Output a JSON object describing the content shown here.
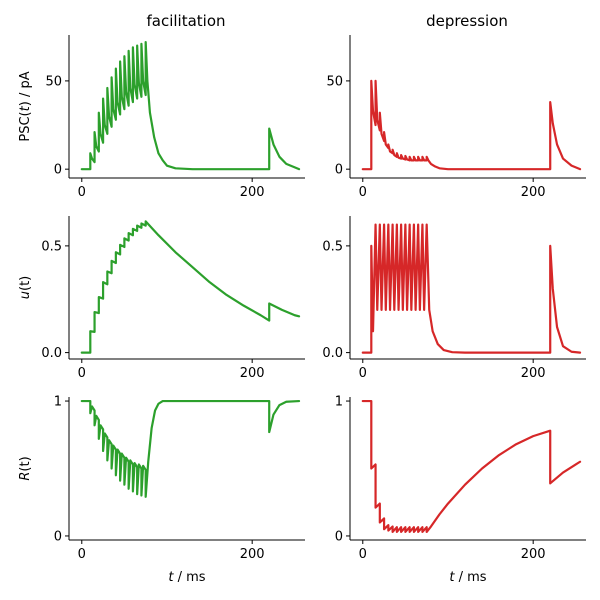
{
  "chart_data": {
    "type": "line",
    "columns": [
      "facilitation",
      "depression"
    ],
    "x_label_var": "t",
    "x_label_unit": " / ms",
    "x_ticks": [
      0,
      200
    ],
    "xlim": [
      -15,
      262
    ],
    "colors": {
      "facilitation": "#2ca02c",
      "depression": "#d62728"
    },
    "rows": [
      {
        "ylabel_pre": "PSC(",
        "ylabel_var": "t",
        "ylabel_post": ") / pA",
        "yticks": [
          0,
          50
        ],
        "ylim": [
          -5,
          76
        ]
      },
      {
        "ylabel_pre": "",
        "ylabel_var": "u",
        "ylabel_post": "(t)",
        "yticks": [
          0.0,
          0.5
        ],
        "ylim": [
          -0.03,
          0.64
        ]
      },
      {
        "ylabel_pre": "",
        "ylabel_var": "R",
        "ylabel_post": "(t)",
        "yticks": [
          0,
          1
        ],
        "ylim": [
          -0.03,
          1.03
        ]
      }
    ],
    "spike_times": [
      10,
      15,
      20,
      25,
      30,
      35,
      40,
      45,
      50,
      55,
      60,
      65,
      70,
      75,
      220
    ],
    "panels": [
      {
        "name": "facilitation PSC",
        "row": 0,
        "col": 0,
        "points": [
          [
            0,
            0
          ],
          [
            10,
            0
          ],
          [
            10,
            9
          ],
          [
            12,
            6
          ],
          [
            15,
            4
          ],
          [
            15,
            21
          ],
          [
            17,
            13
          ],
          [
            20,
            10
          ],
          [
            20,
            32
          ],
          [
            22,
            20
          ],
          [
            25,
            15
          ],
          [
            25,
            40
          ],
          [
            27,
            25
          ],
          [
            30,
            20
          ],
          [
            30,
            46
          ],
          [
            32,
            30
          ],
          [
            35,
            24
          ],
          [
            35,
            52
          ],
          [
            37,
            34
          ],
          [
            40,
            28
          ],
          [
            40,
            57
          ],
          [
            42,
            38
          ],
          [
            45,
            31
          ],
          [
            45,
            61
          ],
          [
            47,
            41
          ],
          [
            50,
            34
          ],
          [
            50,
            64
          ],
          [
            52,
            44
          ],
          [
            55,
            36
          ],
          [
            55,
            67
          ],
          [
            57,
            46
          ],
          [
            60,
            38
          ],
          [
            60,
            69
          ],
          [
            62,
            48
          ],
          [
            65,
            40
          ],
          [
            65,
            70
          ],
          [
            67,
            49
          ],
          [
            70,
            41
          ],
          [
            70,
            71
          ],
          [
            72,
            50
          ],
          [
            75,
            42
          ],
          [
            75,
            72
          ],
          [
            77,
            50
          ],
          [
            80,
            32
          ],
          [
            85,
            18
          ],
          [
            90,
            9
          ],
          [
            95,
            5
          ],
          [
            100,
            2
          ],
          [
            110,
            0.5
          ],
          [
            130,
            0
          ],
          [
            220,
            0
          ],
          [
            220,
            23
          ],
          [
            225,
            14
          ],
          [
            232,
            7
          ],
          [
            240,
            3
          ],
          [
            250,
            1
          ],
          [
            255,
            0
          ]
        ]
      },
      {
        "name": "depression PSC",
        "row": 0,
        "col": 1,
        "points": [
          [
            0,
            0
          ],
          [
            10,
            0
          ],
          [
            10,
            50
          ],
          [
            12,
            33
          ],
          [
            15,
            25
          ],
          [
            15,
            50
          ],
          [
            17,
            28
          ],
          [
            20,
            22
          ],
          [
            20,
            32
          ],
          [
            22,
            20
          ],
          [
            25,
            16
          ],
          [
            25,
            21
          ],
          [
            27,
            14
          ],
          [
            30,
            12
          ],
          [
            30,
            14
          ],
          [
            32,
            10
          ],
          [
            35,
            9
          ],
          [
            35,
            11
          ],
          [
            37,
            8
          ],
          [
            40,
            7
          ],
          [
            40,
            9
          ],
          [
            42,
            6.5
          ],
          [
            45,
            6
          ],
          [
            45,
            8
          ],
          [
            47,
            6
          ],
          [
            50,
            5.5
          ],
          [
            50,
            7.5
          ],
          [
            52,
            5.5
          ],
          [
            55,
            5
          ],
          [
            55,
            7
          ],
          [
            57,
            5
          ],
          [
            60,
            5
          ],
          [
            60,
            7
          ],
          [
            62,
            5
          ],
          [
            65,
            5
          ],
          [
            65,
            7
          ],
          [
            67,
            5
          ],
          [
            70,
            5
          ],
          [
            70,
            7
          ],
          [
            72,
            5
          ],
          [
            75,
            5
          ],
          [
            75,
            7
          ],
          [
            77,
            5
          ],
          [
            80,
            3
          ],
          [
            85,
            1.5
          ],
          [
            90,
            0.5
          ],
          [
            100,
            0
          ],
          [
            220,
            0
          ],
          [
            220,
            38
          ],
          [
            223,
            26
          ],
          [
            228,
            14
          ],
          [
            235,
            6
          ],
          [
            245,
            2
          ],
          [
            255,
            0
          ]
        ]
      },
      {
        "name": "facilitation u",
        "row": 1,
        "col": 0,
        "points": [
          [
            0,
            0
          ],
          [
            10,
            0
          ],
          [
            10,
            0.1
          ],
          [
            15,
            0.097
          ],
          [
            15,
            0.19
          ],
          [
            20,
            0.185
          ],
          [
            20,
            0.26
          ],
          [
            25,
            0.253
          ],
          [
            25,
            0.33
          ],
          [
            30,
            0.32
          ],
          [
            30,
            0.38
          ],
          [
            35,
            0.372
          ],
          [
            35,
            0.43
          ],
          [
            40,
            0.42
          ],
          [
            40,
            0.47
          ],
          [
            45,
            0.46
          ],
          [
            45,
            0.505
          ],
          [
            50,
            0.495
          ],
          [
            50,
            0.535
          ],
          [
            55,
            0.525
          ],
          [
            55,
            0.56
          ],
          [
            60,
            0.55
          ],
          [
            60,
            0.58
          ],
          [
            65,
            0.57
          ],
          [
            65,
            0.595
          ],
          [
            70,
            0.585
          ],
          [
            70,
            0.605
          ],
          [
            75,
            0.595
          ],
          [
            75,
            0.615
          ],
          [
            90,
            0.55
          ],
          [
            110,
            0.47
          ],
          [
            130,
            0.4
          ],
          [
            150,
            0.33
          ],
          [
            170,
            0.27
          ],
          [
            190,
            0.22
          ],
          [
            210,
            0.175
          ],
          [
            220,
            0.15
          ],
          [
            220,
            0.23
          ],
          [
            235,
            0.2
          ],
          [
            250,
            0.175
          ],
          [
            255,
            0.17
          ]
        ]
      },
      {
        "name": "depression u",
        "row": 1,
        "col": 1,
        "points": [
          [
            0,
            0
          ],
          [
            10,
            0
          ],
          [
            10,
            0.5
          ],
          [
            12,
            0.1
          ],
          [
            15,
            0.6
          ],
          [
            17,
            0.2
          ],
          [
            20,
            0.6
          ],
          [
            22,
            0.2
          ],
          [
            25,
            0.6
          ],
          [
            27,
            0.2
          ],
          [
            30,
            0.6
          ],
          [
            32,
            0.2
          ],
          [
            35,
            0.6
          ],
          [
            37,
            0.2
          ],
          [
            40,
            0.6
          ],
          [
            42,
            0.2
          ],
          [
            45,
            0.6
          ],
          [
            47,
            0.2
          ],
          [
            50,
            0.6
          ],
          [
            52,
            0.2
          ],
          [
            55,
            0.6
          ],
          [
            57,
            0.2
          ],
          [
            60,
            0.6
          ],
          [
            62,
            0.2
          ],
          [
            65,
            0.6
          ],
          [
            67,
            0.2
          ],
          [
            70,
            0.6
          ],
          [
            72,
            0.2
          ],
          [
            75,
            0.6
          ],
          [
            78,
            0.2
          ],
          [
            82,
            0.1
          ],
          [
            88,
            0.04
          ],
          [
            95,
            0.012
          ],
          [
            105,
            0.002
          ],
          [
            120,
            0
          ],
          [
            220,
            0
          ],
          [
            220,
            0.5
          ],
          [
            223,
            0.3
          ],
          [
            228,
            0.12
          ],
          [
            235,
            0.03
          ],
          [
            245,
            0.004
          ],
          [
            255,
            0
          ]
        ]
      },
      {
        "name": "facilitation R",
        "row": 2,
        "col": 0,
        "points": [
          [
            0,
            1
          ],
          [
            10,
            1
          ],
          [
            10,
            0.91
          ],
          [
            12,
            0.96
          ],
          [
            15,
            0.93
          ],
          [
            15,
            0.82
          ],
          [
            17,
            0.89
          ],
          [
            20,
            0.86
          ],
          [
            20,
            0.72
          ],
          [
            22,
            0.82
          ],
          [
            25,
            0.79
          ],
          [
            25,
            0.63
          ],
          [
            27,
            0.76
          ],
          [
            30,
            0.73
          ],
          [
            30,
            0.56
          ],
          [
            32,
            0.71
          ],
          [
            35,
            0.68
          ],
          [
            35,
            0.5
          ],
          [
            37,
            0.67
          ],
          [
            40,
            0.64
          ],
          [
            40,
            0.45
          ],
          [
            42,
            0.64
          ],
          [
            45,
            0.61
          ],
          [
            45,
            0.41
          ],
          [
            47,
            0.61
          ],
          [
            50,
            0.58
          ],
          [
            50,
            0.38
          ],
          [
            52,
            0.58
          ],
          [
            55,
            0.55
          ],
          [
            55,
            0.35
          ],
          [
            57,
            0.56
          ],
          [
            60,
            0.53
          ],
          [
            60,
            0.33
          ],
          [
            62,
            0.54
          ],
          [
            65,
            0.51
          ],
          [
            65,
            0.31
          ],
          [
            67,
            0.53
          ],
          [
            70,
            0.5
          ],
          [
            70,
            0.3
          ],
          [
            72,
            0.52
          ],
          [
            75,
            0.49
          ],
          [
            75,
            0.29
          ],
          [
            78,
            0.55
          ],
          [
            82,
            0.8
          ],
          [
            86,
            0.93
          ],
          [
            90,
            0.98
          ],
          [
            95,
            1.0
          ],
          [
            220,
            1.0
          ],
          [
            220,
            0.77
          ],
          [
            225,
            0.9
          ],
          [
            232,
            0.97
          ],
          [
            240,
            0.995
          ],
          [
            255,
            1.0
          ]
        ]
      },
      {
        "name": "depression R",
        "row": 2,
        "col": 1,
        "points": [
          [
            0,
            1
          ],
          [
            10,
            1
          ],
          [
            10,
            0.5
          ],
          [
            15,
            0.53
          ],
          [
            15,
            0.21
          ],
          [
            20,
            0.24
          ],
          [
            20,
            0.1
          ],
          [
            25,
            0.13
          ],
          [
            25,
            0.05
          ],
          [
            30,
            0.08
          ],
          [
            30,
            0.04
          ],
          [
            35,
            0.07
          ],
          [
            35,
            0.03
          ],
          [
            40,
            0.065
          ],
          [
            40,
            0.03
          ],
          [
            45,
            0.065
          ],
          [
            45,
            0.03
          ],
          [
            50,
            0.065
          ],
          [
            50,
            0.03
          ],
          [
            55,
            0.065
          ],
          [
            55,
            0.03
          ],
          [
            60,
            0.065
          ],
          [
            60,
            0.03
          ],
          [
            65,
            0.065
          ],
          [
            65,
            0.03
          ],
          [
            70,
            0.065
          ],
          [
            70,
            0.03
          ],
          [
            75,
            0.065
          ],
          [
            75,
            0.03
          ],
          [
            80,
            0.07
          ],
          [
            90,
            0.16
          ],
          [
            100,
            0.24
          ],
          [
            120,
            0.38
          ],
          [
            140,
            0.5
          ],
          [
            160,
            0.6
          ],
          [
            180,
            0.68
          ],
          [
            200,
            0.74
          ],
          [
            220,
            0.78
          ],
          [
            220,
            0.39
          ],
          [
            235,
            0.47
          ],
          [
            250,
            0.53
          ],
          [
            255,
            0.55
          ]
        ]
      }
    ]
  }
}
